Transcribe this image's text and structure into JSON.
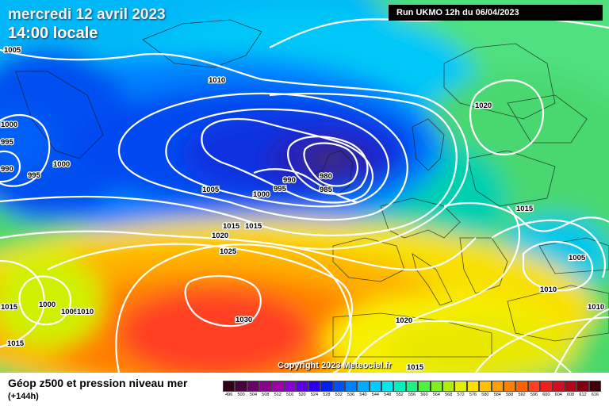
{
  "header": {
    "date": "mercredi 12 avril 2023",
    "time": "14:00 locale",
    "run": "Run UKMO 12h du 06/04/2023"
  },
  "copyright": "Copyright 2023 Meteociel.fr",
  "footer": {
    "field": "Géop z500 et pression niveau mer",
    "lead": "(+144h)"
  },
  "isobar_labels": [
    "1005",
    "1010",
    "1000",
    "995",
    "990",
    "1000",
    "995",
    "1005",
    "1000",
    "995",
    "990",
    "980",
    "985",
    "1015",
    "1020",
    "1025",
    "1030",
    "1015",
    "1000",
    "1005",
    "1010",
    "1015",
    "1020",
    "1020",
    "1015",
    "1015",
    "1005",
    "1010",
    "1010",
    "1015"
  ],
  "legend": {
    "values": [
      "496",
      "500",
      "504",
      "508",
      "512",
      "516",
      "520",
      "524",
      "528",
      "532",
      "536",
      "540",
      "544",
      "548",
      "552",
      "556",
      "560",
      "564",
      "568",
      "572",
      "576",
      "580",
      "584",
      "588",
      "592",
      "596",
      "600",
      "604",
      "608",
      "612",
      "616"
    ],
    "colors": [
      "#300018",
      "#4a0040",
      "#6a006a",
      "#8a008a",
      "#a000a8",
      "#8a00d0",
      "#5a00e0",
      "#2a00e8",
      "#0020f0",
      "#0050f8",
      "#0080ff",
      "#00aaff",
      "#00ccff",
      "#00e8f0",
      "#00f0c0",
      "#20f080",
      "#50f040",
      "#80f020",
      "#b0f000",
      "#e0f000",
      "#ffe000",
      "#ffc000",
      "#ffa000",
      "#ff8000",
      "#ff6000",
      "#ff4020",
      "#f02020",
      "#d01020",
      "#b00818",
      "#800010",
      "#400008"
    ]
  },
  "colors": {
    "background_sea": "#00aaff",
    "title_text": "#ffffff",
    "isobar": "#ffffff"
  }
}
